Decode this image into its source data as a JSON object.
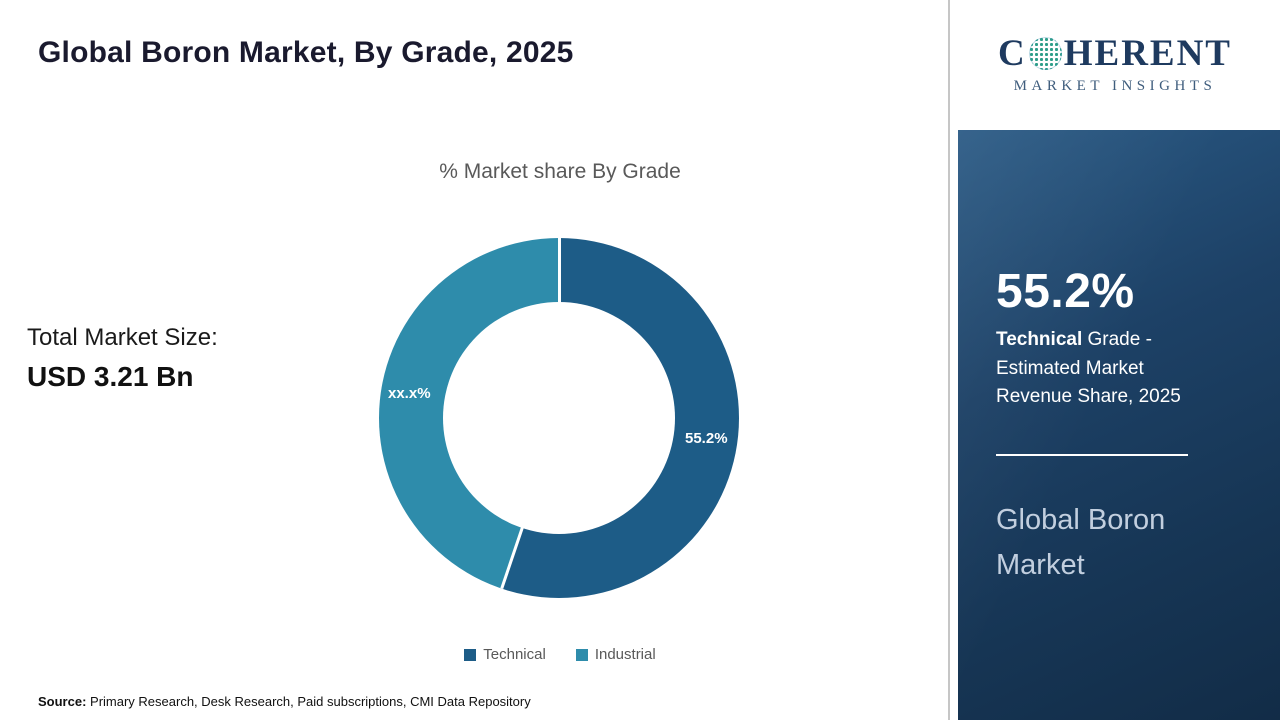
{
  "header": {
    "title": "Global Boron Market, By Grade, 2025"
  },
  "logo": {
    "name_start": "C",
    "name_end": "HERENT",
    "subtitle": "MARKET INSIGHTS"
  },
  "main": {
    "total_label": "Total Market Size:",
    "total_value": "USD 3.21 Bn",
    "source_label": "Source:",
    "source_text": " Primary Research, Desk Research, Paid subscriptions, CMI Data Repository"
  },
  "chart_data": {
    "type": "pie",
    "donut": true,
    "title": "% Market share By Grade",
    "categories": [
      "Technical",
      "Industrial"
    ],
    "values": [
      55.2,
      44.8
    ],
    "slice_labels": [
      "55.2%",
      "xx.x%"
    ],
    "colors": [
      "#1d5c87",
      "#2e8cab"
    ],
    "legend_position": "bottom"
  },
  "sidebar": {
    "stat_value": "55.2%",
    "stat_label_bold": "Technical",
    "stat_label_rest": " Grade - Estimated Market Revenue Share, 2025",
    "panel_title": "Global Boron Market",
    "panel_bg": "#1d4166",
    "accent_text_color": "#c2cfdf"
  }
}
